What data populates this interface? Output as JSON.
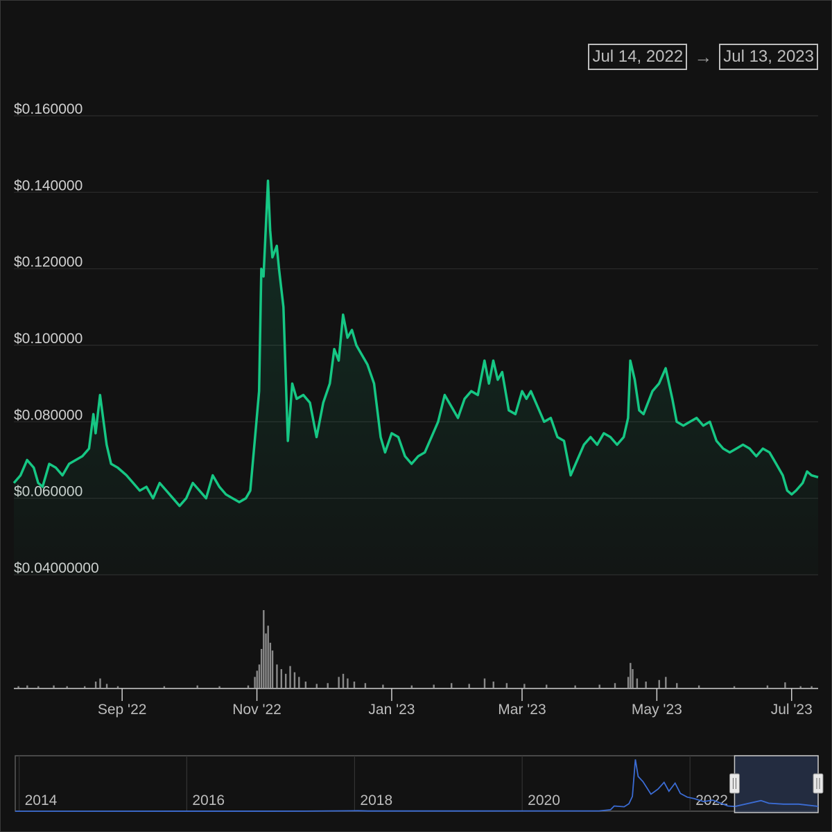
{
  "date_range": {
    "start": "Jul 14, 2022",
    "arrow": "→",
    "end": "Jul 13, 2023"
  },
  "colors": {
    "background": "#121212",
    "price_line": "#16c784",
    "grid": "#2c2c2c",
    "volume": "#8a8a8a",
    "navigator_line": "#3b6cd4",
    "navigator_window": "#2a3550"
  },
  "chart_data": {
    "type": "line",
    "ylim": [
      0.04,
      0.16
    ],
    "y_ticks": [
      {
        "value": 0.16,
        "label": "$0.160000"
      },
      {
        "value": 0.14,
        "label": "$0.140000"
      },
      {
        "value": 0.12,
        "label": "$0.120000"
      },
      {
        "value": 0.1,
        "label": "$0.100000"
      },
      {
        "value": 0.08,
        "label": "$0.080000"
      },
      {
        "value": 0.06,
        "label": "$0.060000"
      },
      {
        "value": 0.04,
        "label": "$0.04000000"
      }
    ],
    "x_range": [
      "2022-07-14",
      "2023-07-13"
    ],
    "x_ticks": [
      {
        "date": "2022-09-01",
        "label": "Sep '22"
      },
      {
        "date": "2022-11-01",
        "label": "Nov '22"
      },
      {
        "date": "2023-01-01",
        "label": "Jan '23"
      },
      {
        "date": "2023-03-01",
        "label": "Mar '23"
      },
      {
        "date": "2023-05-01",
        "label": "May '23"
      },
      {
        "date": "2023-07-01",
        "label": "Jul '23"
      }
    ],
    "series": [
      {
        "values": [
          [
            "2022-07-14",
            0.064
          ],
          [
            "2022-07-17",
            0.066
          ],
          [
            "2022-07-20",
            0.07
          ],
          [
            "2022-07-23",
            0.068
          ],
          [
            "2022-07-25",
            0.064
          ],
          [
            "2022-07-27",
            0.063
          ],
          [
            "2022-07-30",
            0.069
          ],
          [
            "2022-08-02",
            0.068
          ],
          [
            "2022-08-05",
            0.066
          ],
          [
            "2022-08-08",
            0.069
          ],
          [
            "2022-08-11",
            0.07
          ],
          [
            "2022-08-14",
            0.071
          ],
          [
            "2022-08-17",
            0.073
          ],
          [
            "2022-08-19",
            0.082
          ],
          [
            "2022-08-20",
            0.077
          ],
          [
            "2022-08-22",
            0.087
          ],
          [
            "2022-08-25",
            0.074
          ],
          [
            "2022-08-27",
            0.069
          ],
          [
            "2022-08-30",
            0.068
          ],
          [
            "2022-09-03",
            0.066
          ],
          [
            "2022-09-06",
            0.064
          ],
          [
            "2022-09-09",
            0.062
          ],
          [
            "2022-09-12",
            0.063
          ],
          [
            "2022-09-15",
            0.06
          ],
          [
            "2022-09-18",
            0.064
          ],
          [
            "2022-09-21",
            0.062
          ],
          [
            "2022-09-24",
            0.06
          ],
          [
            "2022-09-27",
            0.058
          ],
          [
            "2022-09-30",
            0.06
          ],
          [
            "2022-10-03",
            0.064
          ],
          [
            "2022-10-06",
            0.062
          ],
          [
            "2022-10-09",
            0.06
          ],
          [
            "2022-10-12",
            0.066
          ],
          [
            "2022-10-15",
            0.063
          ],
          [
            "2022-10-18",
            0.061
          ],
          [
            "2022-10-21",
            0.06
          ],
          [
            "2022-10-24",
            0.059
          ],
          [
            "2022-10-27",
            0.06
          ],
          [
            "2022-10-29",
            0.062
          ],
          [
            "2022-10-31",
            0.075
          ],
          [
            "2022-11-02",
            0.088
          ],
          [
            "2022-11-03",
            0.12
          ],
          [
            "2022-11-04",
            0.118
          ],
          [
            "2022-11-06",
            0.143
          ],
          [
            "2022-11-07",
            0.13
          ],
          [
            "2022-11-08",
            0.123
          ],
          [
            "2022-11-10",
            0.126
          ],
          [
            "2022-11-11",
            0.12
          ],
          [
            "2022-11-13",
            0.11
          ],
          [
            "2022-11-15",
            0.075
          ],
          [
            "2022-11-17",
            0.09
          ],
          [
            "2022-11-19",
            0.086
          ],
          [
            "2022-11-22",
            0.087
          ],
          [
            "2022-11-25",
            0.085
          ],
          [
            "2022-11-28",
            0.076
          ],
          [
            "2022-12-01",
            0.085
          ],
          [
            "2022-12-04",
            0.09
          ],
          [
            "2022-12-06",
            0.099
          ],
          [
            "2022-12-08",
            0.096
          ],
          [
            "2022-12-10",
            0.108
          ],
          [
            "2022-12-12",
            0.102
          ],
          [
            "2022-12-14",
            0.104
          ],
          [
            "2022-12-16",
            0.1
          ],
          [
            "2022-12-18",
            0.098
          ],
          [
            "2022-12-21",
            0.095
          ],
          [
            "2022-12-24",
            0.09
          ],
          [
            "2022-12-27",
            0.076
          ],
          [
            "2022-12-29",
            0.072
          ],
          [
            "2023-01-01",
            0.077
          ],
          [
            "2023-01-04",
            0.076
          ],
          [
            "2023-01-07",
            0.071
          ],
          [
            "2023-01-10",
            0.069
          ],
          [
            "2023-01-13",
            0.071
          ],
          [
            "2023-01-16",
            0.072
          ],
          [
            "2023-01-19",
            0.076
          ],
          [
            "2023-01-22",
            0.08
          ],
          [
            "2023-01-25",
            0.087
          ],
          [
            "2023-01-28",
            0.084
          ],
          [
            "2023-01-31",
            0.081
          ],
          [
            "2023-02-03",
            0.086
          ],
          [
            "2023-02-06",
            0.088
          ],
          [
            "2023-02-09",
            0.087
          ],
          [
            "2023-02-12",
            0.096
          ],
          [
            "2023-02-14",
            0.09
          ],
          [
            "2023-02-16",
            0.096
          ],
          [
            "2023-02-18",
            0.091
          ],
          [
            "2023-02-20",
            0.093
          ],
          [
            "2023-02-23",
            0.083
          ],
          [
            "2023-02-26",
            0.082
          ],
          [
            "2023-03-01",
            0.088
          ],
          [
            "2023-03-03",
            0.086
          ],
          [
            "2023-03-05",
            0.088
          ],
          [
            "2023-03-08",
            0.084
          ],
          [
            "2023-03-11",
            0.08
          ],
          [
            "2023-03-14",
            0.081
          ],
          [
            "2023-03-17",
            0.076
          ],
          [
            "2023-03-20",
            0.075
          ],
          [
            "2023-03-23",
            0.066
          ],
          [
            "2023-03-26",
            0.07
          ],
          [
            "2023-03-29",
            0.074
          ],
          [
            "2023-04-01",
            0.076
          ],
          [
            "2023-04-04",
            0.074
          ],
          [
            "2023-04-07",
            0.077
          ],
          [
            "2023-04-10",
            0.076
          ],
          [
            "2023-04-13",
            0.074
          ],
          [
            "2023-04-16",
            0.076
          ],
          [
            "2023-04-18",
            0.081
          ],
          [
            "2023-04-19",
            0.096
          ],
          [
            "2023-04-21",
            0.091
          ],
          [
            "2023-04-23",
            0.083
          ],
          [
            "2023-04-25",
            0.082
          ],
          [
            "2023-04-27",
            0.085
          ],
          [
            "2023-04-29",
            0.088
          ],
          [
            "2023-05-02",
            0.09
          ],
          [
            "2023-05-05",
            0.094
          ],
          [
            "2023-05-08",
            0.086
          ],
          [
            "2023-05-10",
            0.08
          ],
          [
            "2023-05-13",
            0.079
          ],
          [
            "2023-05-16",
            0.08
          ],
          [
            "2023-05-19",
            0.081
          ],
          [
            "2023-05-22",
            0.079
          ],
          [
            "2023-05-25",
            0.08
          ],
          [
            "2023-05-28",
            0.075
          ],
          [
            "2023-05-31",
            0.073
          ],
          [
            "2023-06-03",
            0.072
          ],
          [
            "2023-06-06",
            0.073
          ],
          [
            "2023-06-09",
            0.074
          ],
          [
            "2023-06-12",
            0.073
          ],
          [
            "2023-06-15",
            0.071
          ],
          [
            "2023-06-18",
            0.073
          ],
          [
            "2023-06-21",
            0.072
          ],
          [
            "2023-06-24",
            0.069
          ],
          [
            "2023-06-27",
            0.066
          ],
          [
            "2023-06-29",
            0.062
          ],
          [
            "2023-07-01",
            0.061
          ],
          [
            "2023-07-03",
            0.062
          ],
          [
            "2023-07-06",
            0.064
          ],
          [
            "2023-07-08",
            0.067
          ],
          [
            "2023-07-10",
            0.066
          ],
          [
            "2023-07-13",
            0.0655
          ]
        ]
      }
    ],
    "volume": {
      "values": [
        [
          "2022-07-16",
          2
        ],
        [
          "2022-07-20",
          3
        ],
        [
          "2022-07-25",
          2
        ],
        [
          "2022-08-01",
          3
        ],
        [
          "2022-08-07",
          2
        ],
        [
          "2022-08-15",
          2
        ],
        [
          "2022-08-20",
          8
        ],
        [
          "2022-08-22",
          12
        ],
        [
          "2022-08-25",
          5
        ],
        [
          "2022-08-30",
          2
        ],
        [
          "2022-09-20",
          2
        ],
        [
          "2022-10-05",
          3
        ],
        [
          "2022-10-15",
          2
        ],
        [
          "2022-10-28",
          3
        ],
        [
          "2022-10-31",
          14
        ],
        [
          "2022-11-01",
          22
        ],
        [
          "2022-11-02",
          30
        ],
        [
          "2022-11-03",
          50
        ],
        [
          "2022-11-04",
          100
        ],
        [
          "2022-11-05",
          70
        ],
        [
          "2022-11-06",
          80
        ],
        [
          "2022-11-07",
          58
        ],
        [
          "2022-11-08",
          48
        ],
        [
          "2022-11-10",
          30
        ],
        [
          "2022-11-12",
          24
        ],
        [
          "2022-11-14",
          18
        ],
        [
          "2022-11-16",
          28
        ],
        [
          "2022-11-18",
          20
        ],
        [
          "2022-11-20",
          14
        ],
        [
          "2022-11-23",
          8
        ],
        [
          "2022-11-28",
          5
        ],
        [
          "2022-12-03",
          6
        ],
        [
          "2022-12-08",
          14
        ],
        [
          "2022-12-10",
          18
        ],
        [
          "2022-12-12",
          12
        ],
        [
          "2022-12-15",
          8
        ],
        [
          "2022-12-20",
          6
        ],
        [
          "2022-12-28",
          4
        ],
        [
          "2023-01-10",
          3
        ],
        [
          "2023-01-20",
          4
        ],
        [
          "2023-01-28",
          6
        ],
        [
          "2023-02-05",
          5
        ],
        [
          "2023-02-12",
          12
        ],
        [
          "2023-02-16",
          8
        ],
        [
          "2023-02-22",
          6
        ],
        [
          "2023-03-02",
          5
        ],
        [
          "2023-03-12",
          4
        ],
        [
          "2023-03-25",
          3
        ],
        [
          "2023-04-05",
          4
        ],
        [
          "2023-04-12",
          6
        ],
        [
          "2023-04-18",
          14
        ],
        [
          "2023-04-19",
          32
        ],
        [
          "2023-04-20",
          24
        ],
        [
          "2023-04-22",
          12
        ],
        [
          "2023-04-26",
          8
        ],
        [
          "2023-05-02",
          10
        ],
        [
          "2023-05-05",
          14
        ],
        [
          "2023-05-10",
          6
        ],
        [
          "2023-05-20",
          3
        ],
        [
          "2023-06-05",
          2
        ],
        [
          "2023-06-20",
          3
        ],
        [
          "2023-06-28",
          7
        ],
        [
          "2023-07-05",
          2
        ],
        [
          "2023-07-10",
          2
        ]
      ]
    },
    "navigator": {
      "labels": [
        "2014",
        "2016",
        "2018",
        "2020",
        "2022"
      ],
      "label_dates": [
        "2014-01-01",
        "2016-01-01",
        "2018-01-01",
        "2020-01-01",
        "2022-01-01"
      ],
      "x_range": [
        "2013-12-15",
        "2023-07-13"
      ],
      "ylim": [
        0,
        0.75
      ],
      "selection": [
        "2022-07-14",
        "2023-07-13"
      ],
      "values": [
        [
          "2013-12-15",
          0.0003
        ],
        [
          "2017-06-01",
          0.0005
        ],
        [
          "2018-01-15",
          0.007
        ],
        [
          "2018-03-01",
          0.003
        ],
        [
          "2019-06-01",
          0.003
        ],
        [
          "2020-12-01",
          0.004
        ],
        [
          "2021-01-20",
          0.02
        ],
        [
          "2021-02-05",
          0.07
        ],
        [
          "2021-03-20",
          0.06
        ],
        [
          "2021-04-10",
          0.1
        ],
        [
          "2021-04-25",
          0.2
        ],
        [
          "2021-05-08",
          0.7
        ],
        [
          "2021-05-20",
          0.47
        ],
        [
          "2021-06-10",
          0.4
        ],
        [
          "2021-07-15",
          0.23
        ],
        [
          "2021-08-15",
          0.3
        ],
        [
          "2021-09-10",
          0.39
        ],
        [
          "2021-10-01",
          0.27
        ],
        [
          "2021-10-28",
          0.38
        ],
        [
          "2021-11-20",
          0.24
        ],
        [
          "2021-12-20",
          0.19
        ],
        [
          "2022-01-20",
          0.17
        ],
        [
          "2022-03-01",
          0.13
        ],
        [
          "2022-04-10",
          0.15
        ],
        [
          "2022-06-15",
          0.07
        ],
        [
          "2022-07-14",
          0.064
        ],
        [
          "2022-11-06",
          0.143
        ],
        [
          "2022-12-10",
          0.108
        ],
        [
          "2023-02-12",
          0.096
        ],
        [
          "2023-04-19",
          0.096
        ],
        [
          "2023-07-13",
          0.0655
        ]
      ]
    }
  }
}
